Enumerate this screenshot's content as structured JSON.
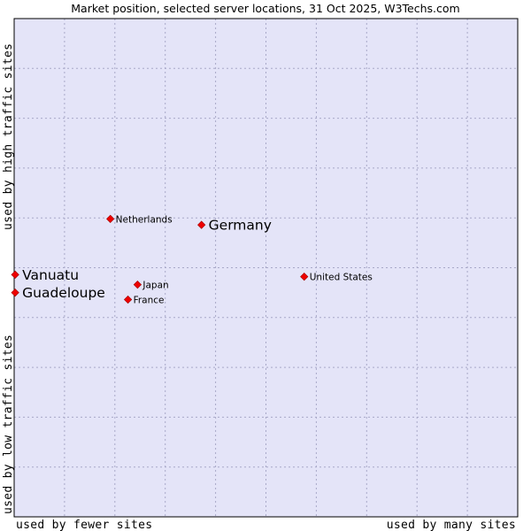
{
  "chart_data": {
    "type": "scatter",
    "title": "Market position, selected server locations, 31 Oct 2025, W3Techs.com",
    "xlabel_left": "used by fewer sites",
    "xlabel_right": "used by many sites",
    "ylabel_top": "used by high traffic sites",
    "ylabel_bottom": "used by low traffic sites",
    "xlim": [
      0,
      100
    ],
    "ylim": [
      0,
      100
    ],
    "grid": true,
    "points": [
      {
        "name": "Netherlands",
        "x": 19.1,
        "y": 59.8,
        "emphasis": false
      },
      {
        "name": "Germany",
        "x": 37.2,
        "y": 58.6,
        "emphasis": true
      },
      {
        "name": "Vanuatu",
        "x": 0.2,
        "y": 48.6,
        "emphasis": true
      },
      {
        "name": "Guadeloupe",
        "x": 0.2,
        "y": 45.0,
        "emphasis": true
      },
      {
        "name": "Japan",
        "x": 24.5,
        "y": 46.6,
        "emphasis": false
      },
      {
        "name": "France",
        "x": 22.6,
        "y": 43.6,
        "emphasis": false
      },
      {
        "name": "United States",
        "x": 57.6,
        "y": 48.2,
        "emphasis": false
      }
    ],
    "colors": {
      "plot_bg": "#e4e4f8",
      "marker": "#ee0000",
      "frame": "#000000",
      "grid": "#a8a8c8"
    }
  }
}
